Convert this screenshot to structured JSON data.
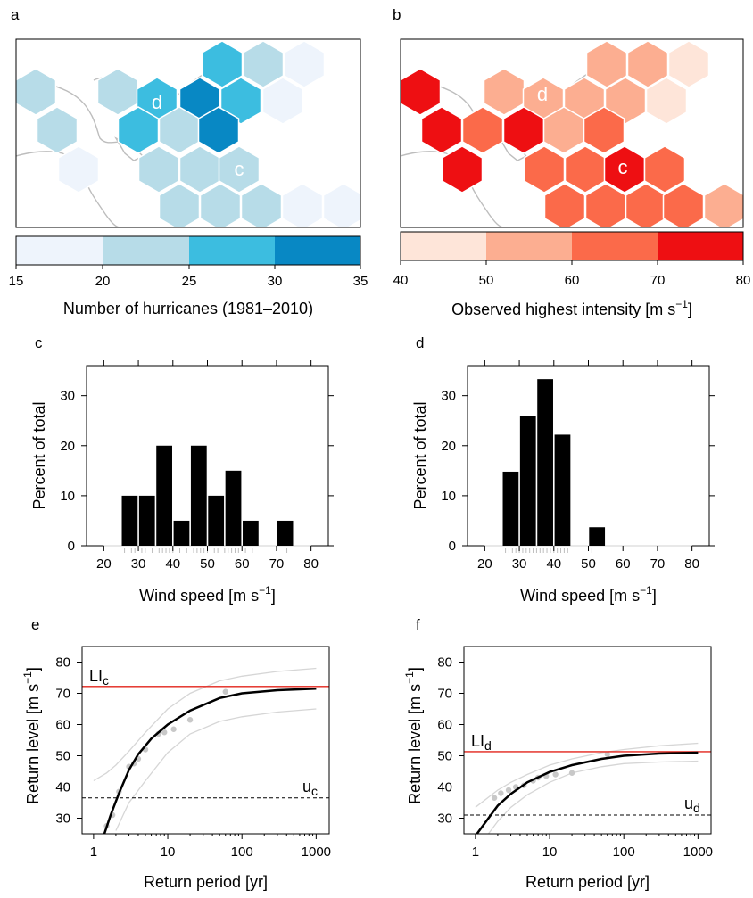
{
  "panels": {
    "a": {
      "letter": "a",
      "map_labels": [
        "d",
        "c"
      ]
    },
    "b": {
      "letter": "b",
      "map_labels": [
        "d",
        "c"
      ]
    }
  },
  "colorbars": {
    "a": {
      "ticks": [
        "15",
        "20",
        "25",
        "30",
        "35"
      ],
      "title": "Number of hurricanes (1981–2010)",
      "colors": [
        "#eef4fc",
        "#b7dce8",
        "#3cbde0",
        "#0888c4"
      ]
    },
    "b": {
      "ticks": [
        "40",
        "50",
        "60",
        "70",
        "80"
      ],
      "title_main": "Observed highest intensity [m s",
      "title_sup": "−1",
      "title_end": "]",
      "colors": [
        "#fee5d9",
        "#fcae91",
        "#fb6a4a",
        "#ee0f12"
      ]
    }
  },
  "maps": {
    "a": {
      "cells": [
        {
          "c": 0,
          "r": 0,
          "v": 3
        },
        {
          "c": 1,
          "r": -1,
          "v": 4
        },
        {
          "c": 1,
          "r": 0,
          "v": 4
        },
        {
          "c": 2,
          "r": 0,
          "v": 4
        },
        {
          "c": -1,
          "r": 0,
          "v": 1
        },
        {
          "c": -2,
          "r": 0,
          "v": 1
        },
        {
          "c": -2,
          "r": -1,
          "v": 2
        },
        {
          "c": 0,
          "r": -1,
          "v": 2
        },
        {
          "c": 1,
          "r": -2,
          "v": 3
        },
        {
          "c": 0,
          "r": -2,
          "v": 2
        },
        {
          "c": -1,
          "r": -1,
          "v": 3
        },
        {
          "c": 2,
          "r": -1,
          "v": 2
        }
      ]
    },
    "b": {
      "cells": []
    }
  },
  "chart_data": [
    {
      "panel": "c",
      "type": "bar",
      "xlabel": "Wind speed [m s−1]",
      "ylabel": "Percent of total",
      "xlim": [
        15,
        85
      ],
      "ylim": [
        0,
        36
      ],
      "x_ticks": [
        20,
        30,
        40,
        50,
        60,
        70,
        80
      ],
      "y_ticks": [
        0,
        10,
        20,
        30
      ],
      "bins": [
        [
          25,
          30,
          10
        ],
        [
          30,
          35,
          10
        ],
        [
          35,
          40,
          20
        ],
        [
          40,
          45,
          5
        ],
        [
          45,
          50,
          20
        ],
        [
          50,
          55,
          10
        ],
        [
          55,
          60,
          15
        ],
        [
          60,
          65,
          5
        ],
        [
          70,
          75,
          5
        ]
      ]
    },
    {
      "panel": "d",
      "type": "bar",
      "xlabel": "Wind speed [m s−1]",
      "ylabel": "Percent of total",
      "xlim": [
        15,
        85
      ],
      "ylim": [
        0,
        36
      ],
      "x_ticks": [
        20,
        30,
        40,
        50,
        60,
        70,
        80
      ],
      "y_ticks": [
        0,
        10,
        20,
        30
      ],
      "bins": [
        [
          25,
          30,
          14.8
        ],
        [
          30,
          35,
          25.9
        ],
        [
          35,
          40,
          33.3
        ],
        [
          40,
          45,
          22.2
        ],
        [
          50,
          55,
          3.7
        ]
      ]
    },
    {
      "panel": "e",
      "type": "line",
      "xlabel": "Return period [yr]",
      "ylabel": "Return level [m s−1]",
      "xscale": "log",
      "xlim": [
        0.7,
        1500
      ],
      "ylim": [
        25,
        85
      ],
      "x_ticks": [
        1,
        10,
        100,
        1000
      ],
      "x_tick_labels": [
        "1",
        "10",
        "100",
        "1000"
      ],
      "y_ticks": [
        30,
        40,
        50,
        60,
        70,
        80
      ],
      "LI": 72.2,
      "u": 36.5,
      "LI_label": "LI",
      "LI_sub": "c",
      "u_label": "u",
      "u_sub": "c",
      "fit": [
        [
          1.4,
          25
        ],
        [
          1.7,
          31
        ],
        [
          2.2,
          38
        ],
        [
          3,
          45.5
        ],
        [
          4,
          50.5
        ],
        [
          6,
          55.5
        ],
        [
          10,
          60
        ],
        [
          20,
          64.5
        ],
        [
          50,
          68.5
        ],
        [
          100,
          70
        ],
        [
          300,
          71
        ],
        [
          1000,
          71.5
        ]
      ],
      "ci_upper": [
        [
          1,
          42
        ],
        [
          1.5,
          44.5
        ],
        [
          2,
          47
        ],
        [
          3,
          51.5
        ],
        [
          5,
          57.5
        ],
        [
          10,
          65
        ],
        [
          20,
          70
        ],
        [
          50,
          74
        ],
        [
          100,
          75.5
        ],
        [
          300,
          77
        ],
        [
          1000,
          78
        ]
      ],
      "ci_lower": [
        [
          2,
          26
        ],
        [
          2.5,
          31
        ],
        [
          3,
          35
        ],
        [
          5,
          42
        ],
        [
          10,
          51
        ],
        [
          20,
          57
        ],
        [
          50,
          61
        ],
        [
          100,
          62.5
        ],
        [
          300,
          64
        ],
        [
          1000,
          65
        ]
      ],
      "observations": [
        [
          1.5,
          27.5
        ],
        [
          1.8,
          31
        ],
        [
          2.2,
          38.5
        ],
        [
          3,
          46.5
        ],
        [
          3.5,
          47.5
        ],
        [
          4,
          49
        ],
        [
          5,
          52
        ],
        [
          7.5,
          57
        ],
        [
          9,
          57.5
        ],
        [
          12,
          58.5
        ],
        [
          20,
          61.5
        ],
        [
          60,
          70.5
        ]
      ]
    },
    {
      "panel": "f",
      "type": "line",
      "xlabel": "Return period [yr]",
      "ylabel": "Return level [m s−1]",
      "xscale": "log",
      "xlim": [
        0.7,
        1500
      ],
      "ylim": [
        25,
        85
      ],
      "x_ticks": [
        1,
        10,
        100,
        1000
      ],
      "x_tick_labels": [
        "1",
        "10",
        "100",
        "1000"
      ],
      "y_ticks": [
        30,
        40,
        50,
        60,
        70,
        80
      ],
      "LI": 51.3,
      "u": 31,
      "LI_label": "LI",
      "LI_sub": "d",
      "u_label": "u",
      "u_sub": "d",
      "fit": [
        [
          1.05,
          25
        ],
        [
          1.5,
          30
        ],
        [
          2,
          34
        ],
        [
          3,
          37.8
        ],
        [
          5,
          41.5
        ],
        [
          10,
          44.8
        ],
        [
          20,
          47
        ],
        [
          50,
          49
        ],
        [
          100,
          50
        ],
        [
          300,
          50.7
        ],
        [
          1000,
          51
        ]
      ],
      "ci_upper": [
        [
          1,
          33.5
        ],
        [
          2,
          39
        ],
        [
          3,
          41.5
        ],
        [
          5,
          44
        ],
        [
          10,
          47
        ],
        [
          20,
          49
        ],
        [
          50,
          51
        ],
        [
          100,
          52
        ],
        [
          300,
          53.2
        ],
        [
          1000,
          54
        ]
      ],
      "ci_lower": [
        [
          1.5,
          25
        ],
        [
          2,
          29
        ],
        [
          3,
          33.5
        ],
        [
          5,
          37.5
        ],
        [
          10,
          41.5
        ],
        [
          20,
          44.5
        ],
        [
          50,
          46.5
        ],
        [
          100,
          47.5
        ],
        [
          300,
          48
        ],
        [
          1000,
          48.3
        ]
      ],
      "observations": [
        [
          1.8,
          36.5
        ],
        [
          2.2,
          38
        ],
        [
          2.8,
          39
        ],
        [
          3.5,
          40
        ],
        [
          4.5,
          40.5
        ],
        [
          6,
          42
        ],
        [
          7,
          43
        ],
        [
          9,
          43.5
        ],
        [
          12,
          44
        ],
        [
          20,
          44.5
        ],
        [
          60,
          50.5
        ]
      ]
    }
  ]
}
